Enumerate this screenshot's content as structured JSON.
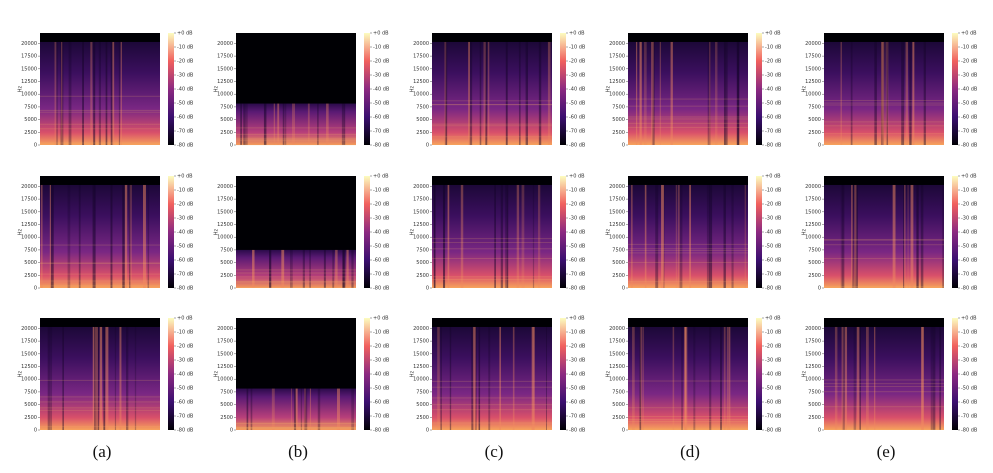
{
  "figure": {
    "columns": [
      "(a)",
      "(b)",
      "(c)",
      "(d)",
      "(e)"
    ],
    "rows": 3,
    "ylabel": "Hz",
    "ylim": [
      0,
      22050
    ],
    "yticks": [
      0,
      2500,
      5000,
      7500,
      10000,
      12500,
      15000,
      17500,
      20000
    ],
    "colorbar_lim": [
      -80,
      0
    ],
    "colorbar_ticks": [
      {
        "value": 0,
        "label": "+0 dB"
      },
      {
        "value": -10,
        "label": "-10 dB"
      },
      {
        "value": -20,
        "label": "-20 dB"
      },
      {
        "value": -30,
        "label": "-30 dB"
      },
      {
        "value": -40,
        "label": "-40 dB"
      },
      {
        "value": -50,
        "label": "-50 dB"
      },
      {
        "value": -60,
        "label": "-60 dB"
      },
      {
        "value": -70,
        "label": "-70 dB"
      },
      {
        "value": -80,
        "label": "-80 dB"
      }
    ]
  }
}
